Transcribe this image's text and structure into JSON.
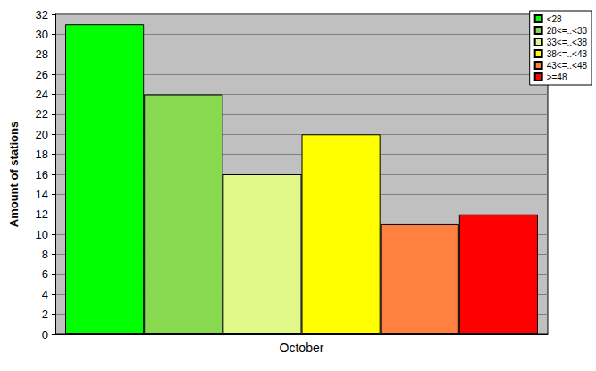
{
  "chart_data": {
    "type": "bar",
    "categories": [
      "October"
    ],
    "series": [
      {
        "name": "<28",
        "color": "#00ff00",
        "values": [
          31
        ]
      },
      {
        "name": "28<=..<33",
        "color": "#88d850",
        "values": [
          24
        ]
      },
      {
        "name": "33<=..<38",
        "color": "#e0f888",
        "values": [
          16
        ]
      },
      {
        "name": "38<=..<43",
        "color": "#ffff00",
        "values": [
          20
        ]
      },
      {
        "name": "43<=..<48",
        "color": "#ff8040",
        "values": [
          11
        ]
      },
      {
        "name": ">=48",
        "color": "#ff0000",
        "values": [
          12
        ]
      }
    ],
    "ylabel": "Amount of stations",
    "ylim": [
      0,
      32
    ],
    "yticks": [
      0,
      2,
      4,
      6,
      8,
      10,
      12,
      14,
      16,
      18,
      20,
      22,
      24,
      26,
      28,
      30,
      32
    ],
    "grid": true,
    "legend": "top-right"
  }
}
